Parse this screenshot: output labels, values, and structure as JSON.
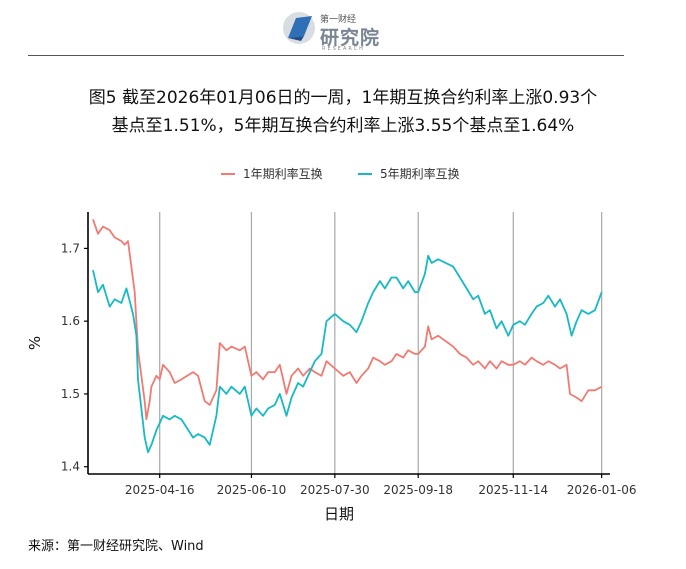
{
  "header": {
    "logo_small": "第一财经",
    "logo_main": "研究院",
    "logo_en": "RESEARCH"
  },
  "title_line1": "图5  截至2026年01月06日的一周，1年期互换合约利率上涨0.93个",
  "title_line2": "基点至1.51%，5年期互换合约利率上涨3.55个基点至1.64%",
  "footer_source": "来源：第一财经研究院、Wind",
  "colors": {
    "series_1y": "#F07B72",
    "series_5y": "#17B9C6",
    "gridline": "#A9A9A9"
  },
  "chart_data": {
    "type": "line",
    "title": "",
    "xlabel": "日期",
    "ylabel": "%",
    "x_range": [
      "2025-03-04",
      "2026-01-11"
    ],
    "ylim": [
      1.39,
      1.75
    ],
    "yticks": [
      1.4,
      1.5,
      1.6,
      1.7
    ],
    "xticks": [
      "2025-04-16",
      "2025-06-10",
      "2025-07-30",
      "2025-09-18",
      "2025-11-14",
      "2026-01-06"
    ],
    "grid": "vertical",
    "legend": "top",
    "series": [
      {
        "name": "1年期利率互换",
        "color": "#F07B72",
        "points": [
          [
            "2025-03-07",
            1.74
          ],
          [
            "2025-03-10",
            1.72
          ],
          [
            "2025-03-13",
            1.73
          ],
          [
            "2025-03-17",
            1.725
          ],
          [
            "2025-03-20",
            1.715
          ],
          [
            "2025-03-24",
            1.71
          ],
          [
            "2025-03-26",
            1.705
          ],
          [
            "2025-03-28",
            1.71
          ],
          [
            "2025-04-01",
            1.64
          ],
          [
            "2025-04-03",
            1.56
          ],
          [
            "2025-04-07",
            1.49
          ],
          [
            "2025-04-08",
            1.465
          ],
          [
            "2025-04-10",
            1.49
          ],
          [
            "2025-04-11",
            1.51
          ],
          [
            "2025-04-14",
            1.525
          ],
          [
            "2025-04-16",
            1.52
          ],
          [
            "2025-04-18",
            1.54
          ],
          [
            "2025-04-22",
            1.53
          ],
          [
            "2025-04-25",
            1.515
          ],
          [
            "2025-04-29",
            1.52
          ],
          [
            "2025-05-06",
            1.53
          ],
          [
            "2025-05-09",
            1.525
          ],
          [
            "2025-05-13",
            1.49
          ],
          [
            "2025-05-16",
            1.485
          ],
          [
            "2025-05-20",
            1.505
          ],
          [
            "2025-05-22",
            1.57
          ],
          [
            "2025-05-26",
            1.56
          ],
          [
            "2025-05-29",
            1.565
          ],
          [
            "2025-06-03",
            1.56
          ],
          [
            "2025-06-06",
            1.565
          ],
          [
            "2025-06-10",
            1.525
          ],
          [
            "2025-06-13",
            1.53
          ],
          [
            "2025-06-17",
            1.52
          ],
          [
            "2025-06-20",
            1.53
          ],
          [
            "2025-06-24",
            1.53
          ],
          [
            "2025-06-27",
            1.54
          ],
          [
            "2025-07-01",
            1.5
          ],
          [
            "2025-07-04",
            1.525
          ],
          [
            "2025-07-08",
            1.535
          ],
          [
            "2025-07-11",
            1.525
          ],
          [
            "2025-07-15",
            1.535
          ],
          [
            "2025-07-18",
            1.53
          ],
          [
            "2025-07-22",
            1.525
          ],
          [
            "2025-07-25",
            1.545
          ],
          [
            "2025-07-30",
            1.535
          ],
          [
            "2025-08-04",
            1.525
          ],
          [
            "2025-08-08",
            1.53
          ],
          [
            "2025-08-12",
            1.515
          ],
          [
            "2025-08-15",
            1.525
          ],
          [
            "2025-08-19",
            1.535
          ],
          [
            "2025-08-22",
            1.55
          ],
          [
            "2025-08-26",
            1.545
          ],
          [
            "2025-08-29",
            1.54
          ],
          [
            "2025-09-02",
            1.545
          ],
          [
            "2025-09-05",
            1.555
          ],
          [
            "2025-09-09",
            1.55
          ],
          [
            "2025-09-12",
            1.56
          ],
          [
            "2025-09-16",
            1.555
          ],
          [
            "2025-09-18",
            1.555
          ],
          [
            "2025-09-22",
            1.565
          ],
          [
            "2025-09-24",
            1.593
          ],
          [
            "2025-09-26",
            1.575
          ],
          [
            "2025-09-30",
            1.58
          ],
          [
            "2025-10-09",
            1.565
          ],
          [
            "2025-10-13",
            1.555
          ],
          [
            "2025-10-17",
            1.55
          ],
          [
            "2025-10-21",
            1.54
          ],
          [
            "2025-10-24",
            1.545
          ],
          [
            "2025-10-28",
            1.535
          ],
          [
            "2025-10-31",
            1.545
          ],
          [
            "2025-11-04",
            1.535
          ],
          [
            "2025-11-07",
            1.545
          ],
          [
            "2025-11-11",
            1.54
          ],
          [
            "2025-11-14",
            1.54
          ],
          [
            "2025-11-18",
            1.545
          ],
          [
            "2025-11-21",
            1.54
          ],
          [
            "2025-11-25",
            1.55
          ],
          [
            "2025-11-28",
            1.545
          ],
          [
            "2025-12-02",
            1.54
          ],
          [
            "2025-12-05",
            1.545
          ],
          [
            "2025-12-09",
            1.54
          ],
          [
            "2025-12-12",
            1.535
          ],
          [
            "2025-12-16",
            1.54
          ],
          [
            "2025-12-18",
            1.5
          ],
          [
            "2025-12-22",
            1.495
          ],
          [
            "2025-12-25",
            1.49
          ],
          [
            "2025-12-29",
            1.505
          ],
          [
            "2026-01-02",
            1.505
          ],
          [
            "2026-01-06",
            1.51
          ]
        ]
      },
      {
        "name": "5年期利率互换",
        "color": "#17B9C6",
        "points": [
          [
            "2025-03-07",
            1.67
          ],
          [
            "2025-03-10",
            1.64
          ],
          [
            "2025-03-13",
            1.65
          ],
          [
            "2025-03-17",
            1.62
          ],
          [
            "2025-03-20",
            1.63
          ],
          [
            "2025-03-24",
            1.625
          ],
          [
            "2025-03-27",
            1.645
          ],
          [
            "2025-03-31",
            1.61
          ],
          [
            "2025-04-02",
            1.58
          ],
          [
            "2025-04-03",
            1.52
          ],
          [
            "2025-04-07",
            1.44
          ],
          [
            "2025-04-09",
            1.42
          ],
          [
            "2025-04-11",
            1.43
          ],
          [
            "2025-04-14",
            1.45
          ],
          [
            "2025-04-16",
            1.46
          ],
          [
            "2025-04-18",
            1.47
          ],
          [
            "2025-04-22",
            1.465
          ],
          [
            "2025-04-25",
            1.47
          ],
          [
            "2025-04-29",
            1.465
          ],
          [
            "2025-05-06",
            1.44
          ],
          [
            "2025-05-09",
            1.445
          ],
          [
            "2025-05-13",
            1.44
          ],
          [
            "2025-05-16",
            1.43
          ],
          [
            "2025-05-20",
            1.47
          ],
          [
            "2025-05-22",
            1.51
          ],
          [
            "2025-05-26",
            1.5
          ],
          [
            "2025-05-29",
            1.51
          ],
          [
            "2025-06-03",
            1.5
          ],
          [
            "2025-06-06",
            1.51
          ],
          [
            "2025-06-10",
            1.47
          ],
          [
            "2025-06-13",
            1.48
          ],
          [
            "2025-06-17",
            1.47
          ],
          [
            "2025-06-20",
            1.48
          ],
          [
            "2025-06-24",
            1.485
          ],
          [
            "2025-06-27",
            1.5
          ],
          [
            "2025-07-01",
            1.47
          ],
          [
            "2025-07-04",
            1.495
          ],
          [
            "2025-07-08",
            1.515
          ],
          [
            "2025-07-11",
            1.51
          ],
          [
            "2025-07-15",
            1.53
          ],
          [
            "2025-07-18",
            1.545
          ],
          [
            "2025-07-22",
            1.555
          ],
          [
            "2025-07-25",
            1.6
          ],
          [
            "2025-07-30",
            1.61
          ],
          [
            "2025-08-04",
            1.6
          ],
          [
            "2025-08-08",
            1.595
          ],
          [
            "2025-08-12",
            1.585
          ],
          [
            "2025-08-15",
            1.6
          ],
          [
            "2025-08-19",
            1.625
          ],
          [
            "2025-08-22",
            1.64
          ],
          [
            "2025-08-26",
            1.655
          ],
          [
            "2025-08-29",
            1.645
          ],
          [
            "2025-09-02",
            1.66
          ],
          [
            "2025-09-05",
            1.66
          ],
          [
            "2025-09-09",
            1.645
          ],
          [
            "2025-09-12",
            1.655
          ],
          [
            "2025-09-16",
            1.64
          ],
          [
            "2025-09-18",
            1.64
          ],
          [
            "2025-09-22",
            1.665
          ],
          [
            "2025-09-24",
            1.69
          ],
          [
            "2025-09-26",
            1.68
          ],
          [
            "2025-09-30",
            1.685
          ],
          [
            "2025-10-09",
            1.675
          ],
          [
            "2025-10-13",
            1.66
          ],
          [
            "2025-10-17",
            1.645
          ],
          [
            "2025-10-21",
            1.63
          ],
          [
            "2025-10-24",
            1.635
          ],
          [
            "2025-10-28",
            1.61
          ],
          [
            "2025-10-31",
            1.615
          ],
          [
            "2025-11-04",
            1.59
          ],
          [
            "2025-11-07",
            1.6
          ],
          [
            "2025-11-11",
            1.58
          ],
          [
            "2025-11-14",
            1.595
          ],
          [
            "2025-11-18",
            1.6
          ],
          [
            "2025-11-21",
            1.595
          ],
          [
            "2025-11-25",
            1.61
          ],
          [
            "2025-11-28",
            1.62
          ],
          [
            "2025-12-02",
            1.625
          ],
          [
            "2025-12-05",
            1.635
          ],
          [
            "2025-12-09",
            1.62
          ],
          [
            "2025-12-12",
            1.63
          ],
          [
            "2025-12-16",
            1.61
          ],
          [
            "2025-12-19",
            1.58
          ],
          [
            "2025-12-22",
            1.6
          ],
          [
            "2025-12-25",
            1.615
          ],
          [
            "2025-12-29",
            1.61
          ],
          [
            "2026-01-02",
            1.615
          ],
          [
            "2026-01-06",
            1.64
          ]
        ]
      }
    ]
  }
}
